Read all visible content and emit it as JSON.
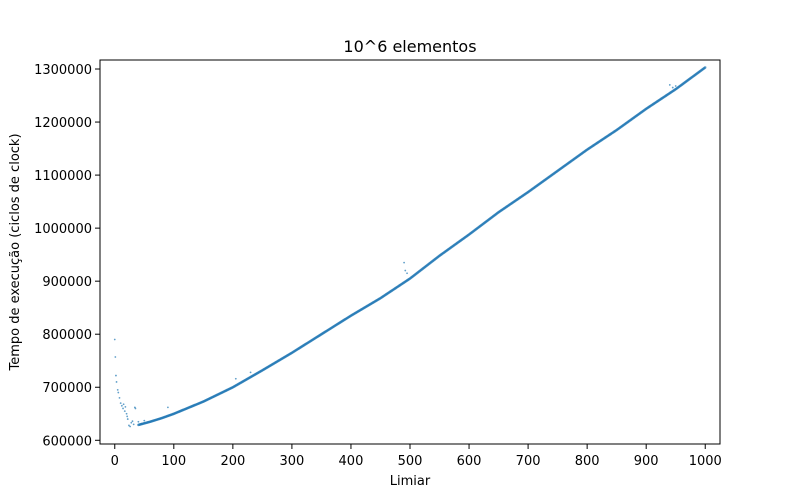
{
  "chart_data": {
    "type": "scatter",
    "title": "10^6 elementos",
    "xlabel": "Limiar",
    "ylabel": "Tempo de execução (ciclos de clock)",
    "xlim": [
      -25,
      1025
    ],
    "ylim": [
      593000,
      1317000
    ],
    "xticks": [
      0,
      100,
      200,
      300,
      400,
      500,
      600,
      700,
      800,
      900,
      1000
    ],
    "yticks": [
      600000,
      700000,
      800000,
      900000,
      1000000,
      1100000,
      1200000,
      1300000
    ],
    "grid": false,
    "series_color": "#1f77b4",
    "curve_anchors": [
      [
        0,
        790000
      ],
      [
        2,
        755000
      ],
      [
        4,
        720000
      ],
      [
        8,
        695000
      ],
      [
        12,
        670000
      ],
      [
        16,
        655000
      ],
      [
        20,
        645000
      ],
      [
        25,
        633000
      ],
      [
        30,
        630000
      ],
      [
        40,
        629000
      ],
      [
        50,
        632000
      ],
      [
        60,
        635000
      ],
      [
        80,
        642000
      ],
      [
        100,
        650000
      ],
      [
        150,
        673000
      ],
      [
        200,
        700000
      ],
      [
        250,
        732000
      ],
      [
        300,
        765000
      ],
      [
        350,
        800000
      ],
      [
        400,
        835000
      ],
      [
        450,
        868000
      ],
      [
        500,
        905000
      ],
      [
        550,
        948000
      ],
      [
        600,
        988000
      ],
      [
        650,
        1030000
      ],
      [
        700,
        1068000
      ],
      [
        750,
        1108000
      ],
      [
        800,
        1148000
      ],
      [
        850,
        1185000
      ],
      [
        900,
        1225000
      ],
      [
        950,
        1262000
      ],
      [
        1000,
        1303000
      ]
    ],
    "scattered_points": [
      [
        0,
        790000
      ],
      [
        1,
        757000
      ],
      [
        2,
        722000
      ],
      [
        3,
        710000
      ],
      [
        5,
        695000
      ],
      [
        6,
        690000
      ],
      [
        8,
        680000
      ],
      [
        10,
        670000
      ],
      [
        12,
        665000
      ],
      [
        14,
        660000
      ],
      [
        15,
        668000
      ],
      [
        17,
        655000
      ],
      [
        18,
        663000
      ],
      [
        20,
        650000
      ],
      [
        21,
        645000
      ],
      [
        22,
        640000
      ],
      [
        24,
        628000
      ],
      [
        26,
        626000
      ],
      [
        28,
        633000
      ],
      [
        30,
        636000
      ],
      [
        32,
        630000
      ],
      [
        34,
        662000
      ],
      [
        35,
        660000
      ],
      [
        40,
        635000
      ],
      [
        45,
        631000
      ],
      [
        50,
        637000
      ],
      [
        90,
        662000
      ],
      [
        205,
        716000
      ],
      [
        230,
        728000
      ],
      [
        490,
        935000
      ],
      [
        492,
        920000
      ],
      [
        495,
        915000
      ],
      [
        940,
        1270000
      ],
      [
        945,
        1265000
      ],
      [
        950,
        1268000
      ]
    ]
  }
}
